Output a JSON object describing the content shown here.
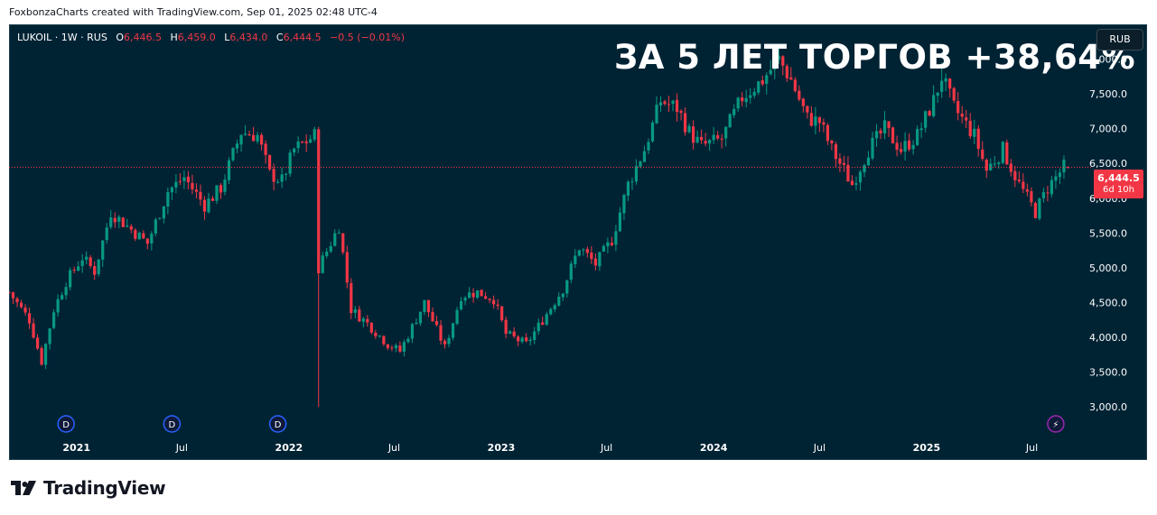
{
  "credit": "FoxbonzaCharts created with TradingView.com, Sep 01, 2025 02:48 UTC-4",
  "legend": {
    "symbol": "LUKOIL · 1W · RUS",
    "o_label": "O",
    "o": "6,446.5",
    "h_label": "H",
    "h": "6,459.0",
    "l_label": "L",
    "l": "6,434.0",
    "c_label": "C",
    "c": "6,444.5",
    "change": "−0.5 (−0.01%)"
  },
  "headline": "ЗА 5 ЛЕТ ТОРГОВ +38,64%",
  "currency_button": "RUB",
  "price_tag": {
    "price": "6,444.5",
    "countdown": "6d 10h"
  },
  "brand": "TradingView",
  "colors": {
    "background": "#002334",
    "up": "#089981",
    "down": "#f23645",
    "axis_text": "#ffffff",
    "dividend_marker": "#2962ff",
    "split_marker": "#9c27b0"
  },
  "chart_data": {
    "type": "candlestick",
    "symbol": "LUKOIL",
    "interval": "1W",
    "currency": "RUB",
    "ylim": [
      2600,
      8500
    ],
    "y_ticks": [
      3000,
      3500,
      4000,
      4500,
      5000,
      5500,
      6000,
      6500,
      7000,
      7500,
      8000
    ],
    "y_tick_labels": [
      "3,000.0",
      "3,500.0",
      "4,000.0",
      "4,500.0",
      "5,000.0",
      "5,500.0",
      "6,000.0",
      "6,500.0",
      "7,000.0",
      "7,500.0",
      "8,000.0"
    ],
    "x_range": [
      "2020-09-07",
      "2025-10-06"
    ],
    "x_ticks": [
      {
        "date": "2021-01-01",
        "label": "2021",
        "bold": true
      },
      {
        "date": "2021-07-01",
        "label": "Jul",
        "bold": false
      },
      {
        "date": "2022-01-01",
        "label": "2022",
        "bold": true
      },
      {
        "date": "2022-07-01",
        "label": "Jul",
        "bold": false
      },
      {
        "date": "2023-01-01",
        "label": "2023",
        "bold": true
      },
      {
        "date": "2023-07-01",
        "label": "Jul",
        "bold": false
      },
      {
        "date": "2024-01-01",
        "label": "2024",
        "bold": true
      },
      {
        "date": "2024-07-01",
        "label": "Jul",
        "bold": false
      },
      {
        "date": "2025-01-01",
        "label": "2025",
        "bold": true
      },
      {
        "date": "2025-07-01",
        "label": "Jul",
        "bold": false
      }
    ],
    "last_price": 6444.5,
    "anchors": [
      [
        "2020-09-07",
        4650
      ],
      [
        "2020-10-12",
        4250
      ],
      [
        "2020-11-02",
        3650
      ],
      [
        "2020-11-23",
        4400
      ],
      [
        "2020-12-14",
        4800
      ],
      [
        "2021-01-11",
        5150
      ],
      [
        "2021-02-01",
        4950
      ],
      [
        "2021-03-01",
        5800
      ],
      [
        "2021-04-05",
        5550
      ],
      [
        "2021-05-03",
        5350
      ],
      [
        "2021-06-07",
        6100
      ],
      [
        "2021-07-05",
        6300
      ],
      [
        "2021-08-09",
        5900
      ],
      [
        "2021-09-06",
        6150
      ],
      [
        "2021-10-11",
        6950
      ],
      [
        "2021-11-08",
        6900
      ],
      [
        "2021-11-29",
        6350
      ],
      [
        "2021-12-20",
        6250
      ],
      [
        "2022-01-10",
        6700
      ],
      [
        "2022-02-14",
        6900
      ],
      [
        "2022-02-21",
        5000
      ],
      [
        "2022-03-28",
        5600
      ],
      [
        "2022-04-18",
        4400
      ],
      [
        "2022-05-16",
        4200
      ],
      [
        "2022-06-20",
        3900
      ],
      [
        "2022-07-11",
        3800
      ],
      [
        "2022-08-22",
        4500
      ],
      [
        "2022-09-26",
        3850
      ],
      [
        "2022-10-24",
        4600
      ],
      [
        "2022-11-21",
        4650
      ],
      [
        "2022-12-19",
        4550
      ],
      [
        "2023-01-09",
        4050
      ],
      [
        "2023-02-13",
        3900
      ],
      [
        "2023-03-13",
        4250
      ],
      [
        "2023-04-17",
        4700
      ],
      [
        "2023-05-15",
        5300
      ],
      [
        "2023-06-12",
        5050
      ],
      [
        "2023-07-10",
        5400
      ],
      [
        "2023-08-07",
        6200
      ],
      [
        "2023-09-04",
        6700
      ],
      [
        "2023-10-02",
        7400
      ],
      [
        "2023-10-30",
        7300
      ],
      [
        "2023-11-20",
        6950
      ],
      [
        "2023-12-11",
        6750
      ],
      [
        "2024-01-15",
        6850
      ],
      [
        "2024-02-19",
        7450
      ],
      [
        "2024-03-25",
        7700
      ],
      [
        "2024-04-22",
        8000
      ],
      [
        "2024-05-13",
        7700
      ],
      [
        "2024-06-10",
        7150
      ],
      [
        "2024-07-01",
        7100
      ],
      [
        "2024-07-22",
        6700
      ],
      [
        "2024-08-26",
        6200
      ],
      [
        "2024-09-23",
        6700
      ],
      [
        "2024-10-21",
        7000
      ],
      [
        "2024-11-18",
        6700
      ],
      [
        "2024-12-16",
        6900
      ],
      [
        "2025-01-13",
        7400
      ],
      [
        "2025-01-27",
        7750
      ],
      [
        "2025-02-17",
        7300
      ],
      [
        "2025-03-24",
        6900
      ],
      [
        "2025-04-14",
        6400
      ],
      [
        "2025-05-12",
        6700
      ],
      [
        "2025-06-09",
        6200
      ],
      [
        "2025-07-07",
        5800
      ],
      [
        "2025-07-28",
        6150
      ],
      [
        "2025-08-25",
        6446.5
      ],
      [
        "2025-09-01",
        6444.5
      ]
    ],
    "wick_events": [
      {
        "date": "2022-02-21",
        "low": 3000
      },
      {
        "date": "2024-04-22",
        "high": 8150
      },
      {
        "date": "2025-01-27",
        "high": 7950
      }
    ],
    "markers": [
      {
        "type": "dividend",
        "label": "D",
        "date": "2020-12-14"
      },
      {
        "type": "dividend",
        "label": "D",
        "date": "2021-06-14"
      },
      {
        "type": "dividend",
        "label": "D",
        "date": "2021-12-13"
      },
      {
        "type": "event",
        "label": "⚡",
        "date": "2025-08-11"
      }
    ]
  }
}
